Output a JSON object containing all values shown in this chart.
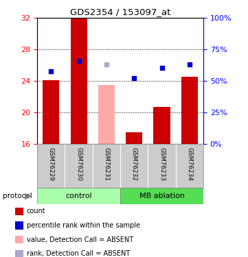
{
  "title": "GDS2354 / 153097_at",
  "samples": [
    "GSM76229",
    "GSM76230",
    "GSM76231",
    "GSM76232",
    "GSM76233",
    "GSM76234"
  ],
  "groups": [
    "control",
    "control",
    "control",
    "MB ablation",
    "MB ablation",
    "MB ablation"
  ],
  "bar_base": 16,
  "bar_tops": [
    24.1,
    32.0,
    23.5,
    17.5,
    20.7,
    24.5
  ],
  "bar_absent": [
    false,
    false,
    true,
    false,
    false,
    false
  ],
  "rank_values": [
    25.2,
    26.55,
    26.1,
    24.35,
    25.65,
    26.1
  ],
  "rank_absent": [
    false,
    false,
    true,
    false,
    false,
    false
  ],
  "ylim_left": [
    16,
    32
  ],
  "ylim_right": [
    0,
    100
  ],
  "yticks_left": [
    16,
    20,
    24,
    28,
    32
  ],
  "yticks_right": [
    0,
    25,
    50,
    75,
    100
  ],
  "color_bar_present": "#cc0000",
  "color_bar_absent": "#ffaaaa",
  "color_rank_present": "#0000cc",
  "color_rank_absent": "#aaaacc",
  "color_control": "#aaffaa",
  "color_mb": "#55dd55",
  "color_gray_labels": "#cccccc",
  "group_labels": [
    "control",
    "MB ablation"
  ],
  "legend_items": [
    {
      "color": "#cc0000",
      "label": "count"
    },
    {
      "color": "#0000cc",
      "label": "percentile rank within the sample"
    },
    {
      "color": "#ffaaaa",
      "label": "value, Detection Call = ABSENT"
    },
    {
      "color": "#aaaacc",
      "label": "rank, Detection Call = ABSENT"
    }
  ],
  "protocol_label": "protocol"
}
